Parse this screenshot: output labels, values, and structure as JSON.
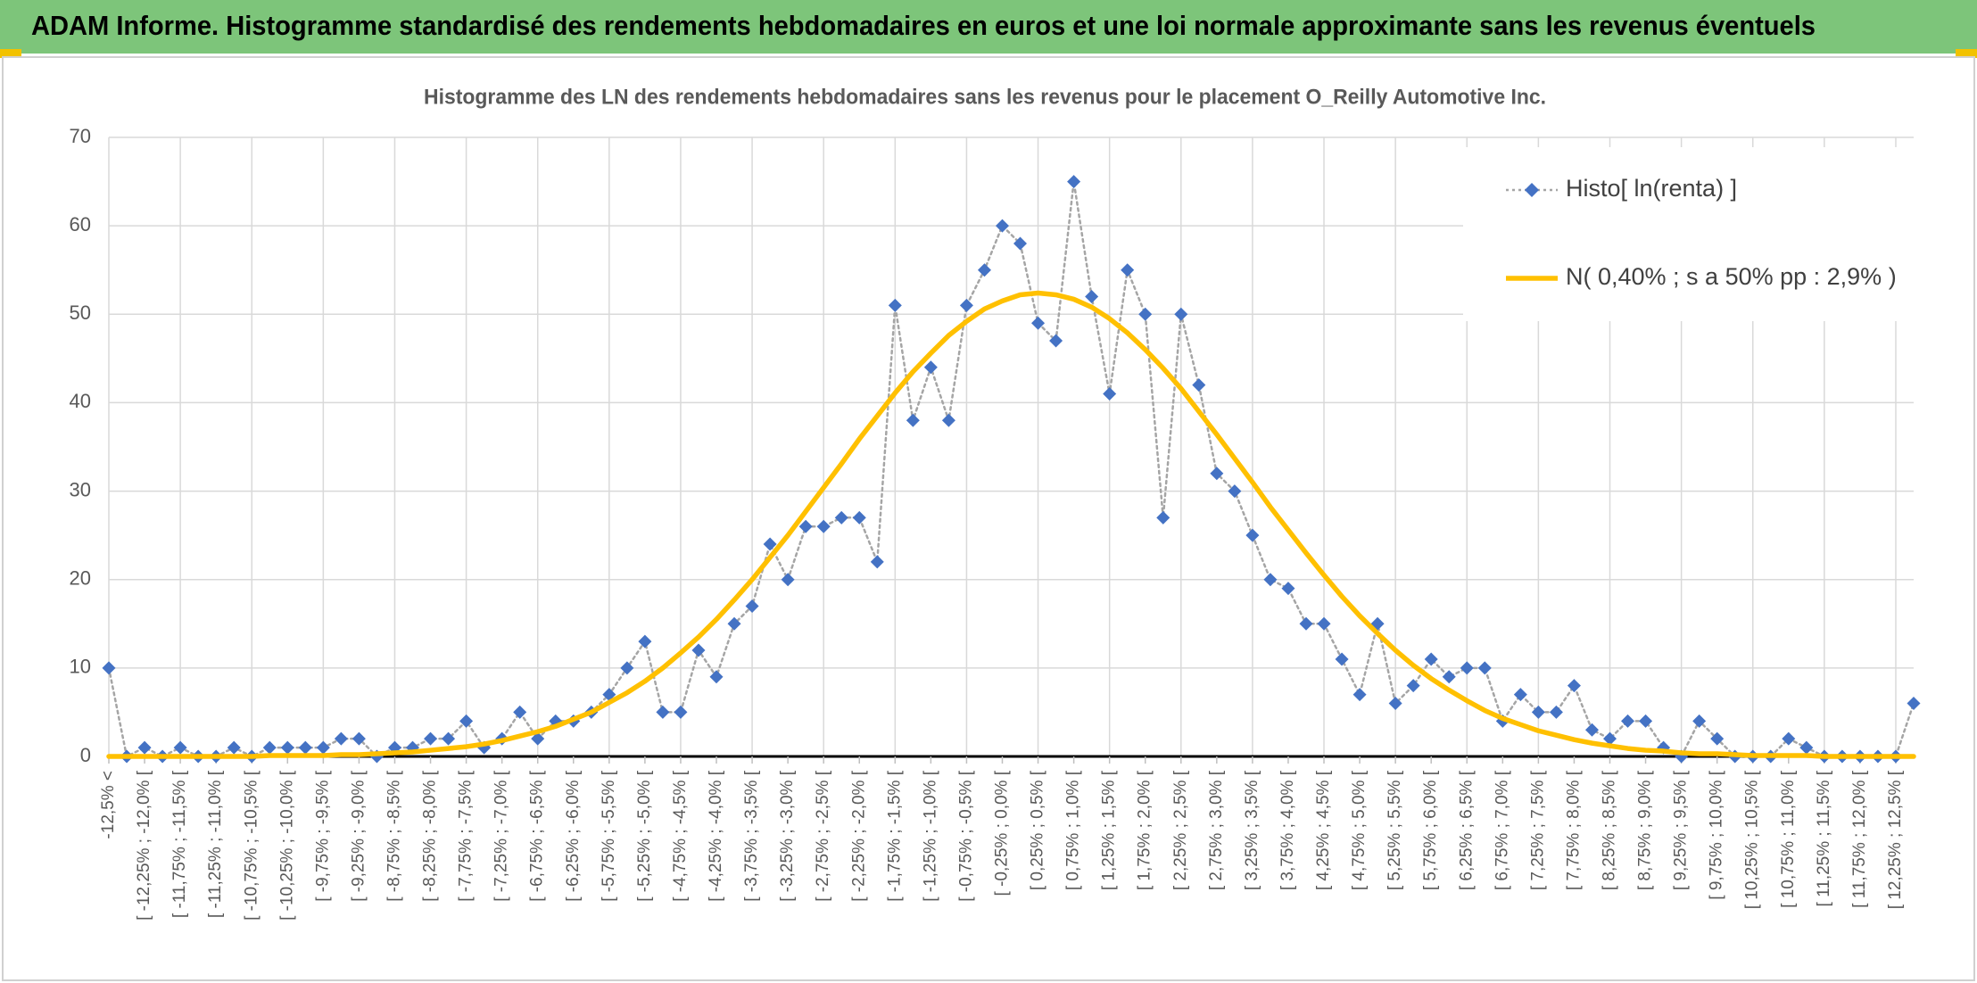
{
  "header": {
    "title": "ADAM Informe. Histogramme standardisé des rendements hebdomadaires en euros et une loi normale approximante sans les revenus éventuels"
  },
  "chart_data": {
    "type": "line",
    "title": "Histogramme des LN des rendements hebdomadaires sans les revenus pour le placement O_Reilly Automotive Inc.",
    "categories": [
      "-12,5% <",
      null,
      "[ -12,25% ; -12,0% [",
      null,
      "[ -11,75% ; -11,5% [",
      null,
      "[ -11,25% ; -11,0% [",
      null,
      "[ -10,75% ; -10,5% [",
      null,
      "[ -10,25% ; -10,0% [",
      null,
      "[ -9,75% ; -9,5% [",
      null,
      "[ -9,25% ; -9,0% [",
      null,
      "[ -8,75% ; -8,5% [",
      null,
      "[ -8,25% ; -8,0% [",
      null,
      "[ -7,75% ; -7,5% [",
      null,
      "[ -7,25% ; -7,0% [",
      null,
      "[ -6,75% ; -6,5% [",
      null,
      "[ -6,25% ; -6,0% [",
      null,
      "[ -5,75% ; -5,5% [",
      null,
      "[ -5,25% ; -5,0% [",
      null,
      "[ -4,75% ; -4,5% [",
      null,
      "[ -4,25% ; -4,0% [",
      null,
      "[ -3,75% ; -3,5% [",
      null,
      "[ -3,25% ; -3,0% [",
      null,
      "[ -2,75% ; -2,5% [",
      null,
      "[ -2,25% ; -2,0% [",
      null,
      "[ -1,75% ; -1,5% [",
      null,
      "[ -1,25% ; -1,0% [",
      null,
      "[ -0,75% ; -0,5% [",
      null,
      "[ -0,25% ; 0,0% [",
      null,
      "[ 0,25% ; 0,5% [",
      null,
      "[ 0,75% ; 1,0% [",
      null,
      "[ 1,25% ; 1,5% [",
      null,
      "[ 1,75% ; 2,0% [",
      null,
      "[ 2,25% ; 2,5% [",
      null,
      "[ 2,75% ; 3,0% [",
      null,
      "[ 3,25% ; 3,5% [",
      null,
      "[ 3,75% ; 4,0% [",
      null,
      "[ 4,25% ; 4,5% [",
      null,
      "[ 4,75% ; 5,0% [",
      null,
      "[ 5,25% ; 5,5% [",
      null,
      "[ 5,75% ; 6,0% [",
      null,
      "[ 6,25% ; 6,5% [",
      null,
      "[ 6,75% ; 7,0% [",
      null,
      "[ 7,25% ; 7,5% [",
      null,
      "[ 7,75% ; 8,0% [",
      null,
      "[ 8,25% ; 8,5% [",
      null,
      "[ 8,75% ; 9,0% [",
      null,
      "[ 9,25% ; 9,5% [",
      null,
      "[ 9,75% ; 10,0% [",
      null,
      "[ 10,25% ; 10,5% [",
      null,
      "[ 10,75% ; 11,0% [",
      null,
      "[ 11,25% ; 11,5% [",
      null,
      "[ 11,75% ; 12,0% [",
      null,
      "[ 12,25% ; 12,5% [",
      null
    ],
    "series": [
      {
        "name": "Histo[ ln(renta) ]",
        "color": "#4472c4",
        "line_color": "#a5a5a5",
        "line_style": "dotted",
        "marker": "diamond",
        "values": [
          10,
          0,
          1,
          0,
          1,
          0,
          0,
          1,
          0,
          1,
          1,
          1,
          1,
          2,
          2,
          0,
          1,
          1,
          2,
          2,
          4,
          1,
          2,
          5,
          2,
          4,
          4,
          5,
          7,
          10,
          13,
          5,
          5,
          12,
          9,
          15,
          17,
          24,
          20,
          26,
          26,
          27,
          27,
          22,
          51,
          38,
          44,
          38,
          51,
          55,
          60,
          58,
          49,
          47,
          65,
          52,
          41,
          55,
          50,
          27,
          50,
          42,
          32,
          30,
          25,
          20,
          19,
          15,
          15,
          11,
          7,
          15,
          6,
          8,
          11,
          9,
          10,
          10,
          4,
          7,
          5,
          5,
          8,
          3,
          2,
          4,
          4,
          1,
          0,
          4,
          2,
          0,
          0,
          0,
          2,
          1,
          0,
          0,
          0,
          0,
          0,
          6
        ]
      },
      {
        "name": "N( 0,40% ; s a 50% pp : 2,9% )",
        "color": "#ffc000",
        "line_style": "solid",
        "marker": "none",
        "values": [
          0,
          0,
          0,
          0,
          0,
          0,
          0,
          0,
          0,
          0.1,
          0.1,
          0.1,
          0.1,
          0.2,
          0.2,
          0.3,
          0.4,
          0.5,
          0.7,
          0.9,
          1.1,
          1.4,
          1.8,
          2.3,
          2.8,
          3.4,
          4.2,
          5.0,
          6.1,
          7.2,
          8.5,
          10.0,
          11.7,
          13.5,
          15.5,
          17.7,
          20.0,
          22.5,
          25.0,
          27.7,
          30.4,
          33.1,
          35.9,
          38.5,
          41.1,
          43.5,
          45.6,
          47.6,
          49.2,
          50.6,
          51.5,
          52.2,
          52.4,
          52.2,
          51.7,
          50.8,
          49.5,
          47.9,
          46.0,
          43.9,
          41.6,
          39.0,
          36.4,
          33.7,
          31.0,
          28.2,
          25.6,
          23.0,
          20.5,
          18.1,
          15.9,
          13.9,
          12.0,
          10.3,
          8.8,
          7.5,
          6.3,
          5.2,
          4.3,
          3.6,
          2.9,
          2.4,
          1.9,
          1.5,
          1.2,
          0.9,
          0.7,
          0.6,
          0.4,
          0.3,
          0.3,
          0.2,
          0.1,
          0.1,
          0.1,
          0.1,
          0,
          0,
          0,
          0,
          0,
          0
        ]
      }
    ],
    "ylim": [
      0,
      70
    ],
    "yticks": [
      0,
      10,
      20,
      30,
      40,
      50,
      60,
      70
    ],
    "grid": true,
    "legend": "upper right"
  }
}
